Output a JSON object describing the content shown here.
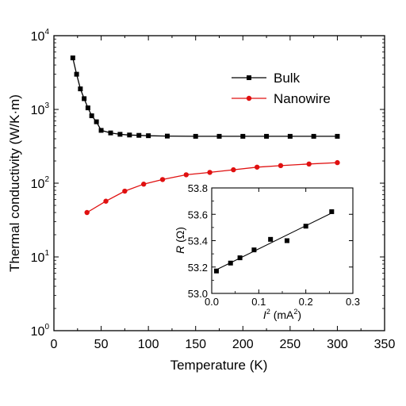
{
  "chart_data": [
    {
      "type": "line",
      "xlabel": "Temperature (K)",
      "ylabel": "Thermal conductivity (W/K·m)",
      "xlim": [
        0,
        350
      ],
      "ylim": [
        1,
        10000
      ],
      "yscale": "log",
      "xticks": [
        "0",
        "50",
        "100",
        "150",
        "200",
        "250",
        "300",
        "350"
      ],
      "yticks": [
        {
          "base": "10",
          "exp": "0"
        },
        {
          "base": "10",
          "exp": "1"
        },
        {
          "base": "10",
          "exp": "2"
        },
        {
          "base": "10",
          "exp": "3"
        },
        {
          "base": "10",
          "exp": "4"
        }
      ],
      "legend_position": "top-right",
      "series": [
        {
          "name": "Bulk",
          "color": "#000000",
          "marker": "square",
          "x": [
            20,
            24,
            28,
            32,
            36,
            40,
            45,
            50,
            60,
            70,
            80,
            90,
            100,
            120,
            150,
            175,
            200,
            225,
            250,
            275,
            300
          ],
          "y": [
            5000,
            3000,
            1900,
            1400,
            1050,
            820,
            680,
            520,
            480,
            460,
            450,
            445,
            440,
            435,
            432,
            432,
            432,
            432,
            432,
            432,
            432
          ]
        },
        {
          "name": "Nanowire",
          "color": "#e01010",
          "marker": "circle",
          "x": [
            35,
            55,
            75,
            95,
            115,
            140,
            165,
            190,
            215,
            240,
            270,
            300
          ],
          "y": [
            40,
            57,
            78,
            97,
            112,
            130,
            140,
            152,
            165,
            173,
            182,
            190
          ]
        }
      ]
    },
    {
      "type": "scatter",
      "xlabel": {
        "var": "I",
        "sup": "2",
        "unit": " (mA",
        "unit_sup": "2",
        "close": ")"
      },
      "ylabel": {
        "var": "R",
        "unit": " (Ω)"
      },
      "xlim": [
        0,
        0.3
      ],
      "ylim": [
        53.0,
        53.8
      ],
      "xticks": [
        "0.0",
        "0.1",
        "0.2",
        "0.3"
      ],
      "yticks": [
        "53.0",
        "53.2",
        "53.4",
        "53.6",
        "53.8"
      ],
      "series": [
        {
          "x": [
            0.01,
            0.04,
            0.06,
            0.09,
            0.125,
            0.16,
            0.2,
            0.255
          ],
          "y": [
            53.17,
            53.23,
            53.27,
            53.33,
            53.41,
            53.4,
            53.51,
            53.62
          ]
        }
      ],
      "fit_line": {
        "x": [
          0.01,
          0.255
        ],
        "y": [
          53.18,
          53.61
        ]
      }
    }
  ]
}
